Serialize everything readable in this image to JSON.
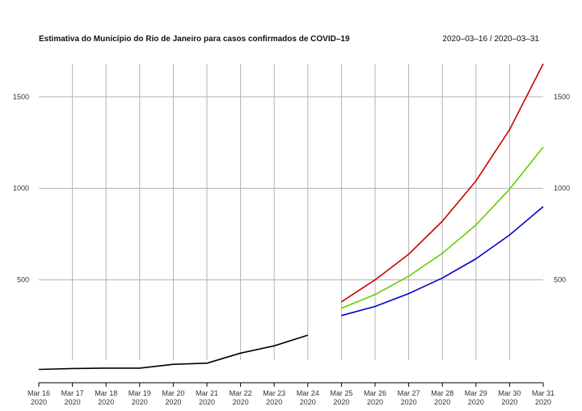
{
  "chart_data": {
    "type": "line",
    "title": "Estimativa do Município do Rio de Janeiro para casos confirmados de COVID–19",
    "date_range": "2020–03–16 / 2020–03–31",
    "xlabel": "",
    "ylabel": "",
    "x_labels": [
      [
        "Mar 16",
        "2020"
      ],
      [
        "Mar 17",
        "2020"
      ],
      [
        "Mar 18",
        "2020"
      ],
      [
        "Mar 19",
        "2020"
      ],
      [
        "Mar 20",
        "2020"
      ],
      [
        "Mar 21",
        "2020"
      ],
      [
        "Mar 22",
        "2020"
      ],
      [
        "Mar 23",
        "2020"
      ],
      [
        "Mar 24",
        "2020"
      ],
      [
        "Mar 25",
        "2020"
      ],
      [
        "Mar 26",
        "2020"
      ],
      [
        "Mar 27",
        "2020"
      ],
      [
        "Mar 28",
        "2020"
      ],
      [
        "Mar 29",
        "2020"
      ],
      [
        "Mar 30",
        "2020"
      ],
      [
        "Mar 31",
        "2020"
      ]
    ],
    "x": [
      "2020-03-16",
      "2020-03-17",
      "2020-03-18",
      "2020-03-19",
      "2020-03-20",
      "2020-03-21",
      "2020-03-22",
      "2020-03-23",
      "2020-03-24",
      "2020-03-25",
      "2020-03-26",
      "2020-03-27",
      "2020-03-28",
      "2020-03-29",
      "2020-03-30",
      "2020-03-31"
    ],
    "y_ticks": [
      500,
      1000,
      1500
    ],
    "ylim": [
      0,
      1680
    ],
    "grid": true,
    "series": [
      {
        "color": "#000000",
        "x": [
          "2020-03-16",
          "2020-03-17",
          "2020-03-18",
          "2020-03-19",
          "2020-03-20",
          "2020-03-21",
          "2020-03-22",
          "2020-03-23",
          "2020-03-24"
        ],
        "values": [
          11,
          16,
          18,
          18,
          39,
          45,
          100,
          140,
          198
        ]
      },
      {
        "color": "#cc0000",
        "x": [
          "2020-03-25",
          "2020-03-26",
          "2020-03-27",
          "2020-03-28",
          "2020-03-29",
          "2020-03-30",
          "2020-03-31"
        ],
        "values": [
          380,
          500,
          640,
          820,
          1040,
          1320,
          1680
        ]
      },
      {
        "color": "#66cc00",
        "x": [
          "2020-03-25",
          "2020-03-26",
          "2020-03-27",
          "2020-03-28",
          "2020-03-29",
          "2020-03-30",
          "2020-03-31"
        ],
        "values": [
          345,
          420,
          520,
          645,
          800,
          995,
          1225
        ]
      },
      {
        "color": "#0000cc",
        "x": [
          "2020-03-25",
          "2020-03-26",
          "2020-03-27",
          "2020-03-28",
          "2020-03-29",
          "2020-03-30",
          "2020-03-31"
        ],
        "values": [
          305,
          355,
          425,
          510,
          615,
          745,
          900
        ]
      }
    ]
  }
}
